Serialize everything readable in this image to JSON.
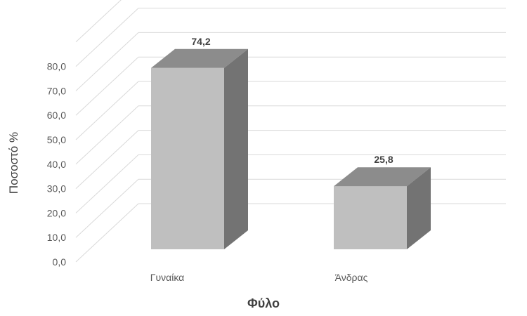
{
  "chart_data": {
    "type": "bar",
    "categories": [
      "Γυναίκα",
      "Άνδρας"
    ],
    "values": [
      74.2,
      25.8
    ],
    "data_labels": [
      "74,2",
      "25,8"
    ],
    "xlabel": "Φύλο",
    "ylabel": "Ποσοστό %",
    "ylim": [
      0,
      80
    ],
    "yticks": [
      "0,0",
      "10,0",
      "20,0",
      "30,0",
      "40,0",
      "50,0",
      "60,0",
      "70,0",
      "80,0"
    ],
    "grid": true,
    "style": "3d",
    "colors": {
      "front": "#bfbfbf",
      "top": "#8c8c8c",
      "side": "#737373",
      "grid": "#d9d9d9"
    }
  }
}
